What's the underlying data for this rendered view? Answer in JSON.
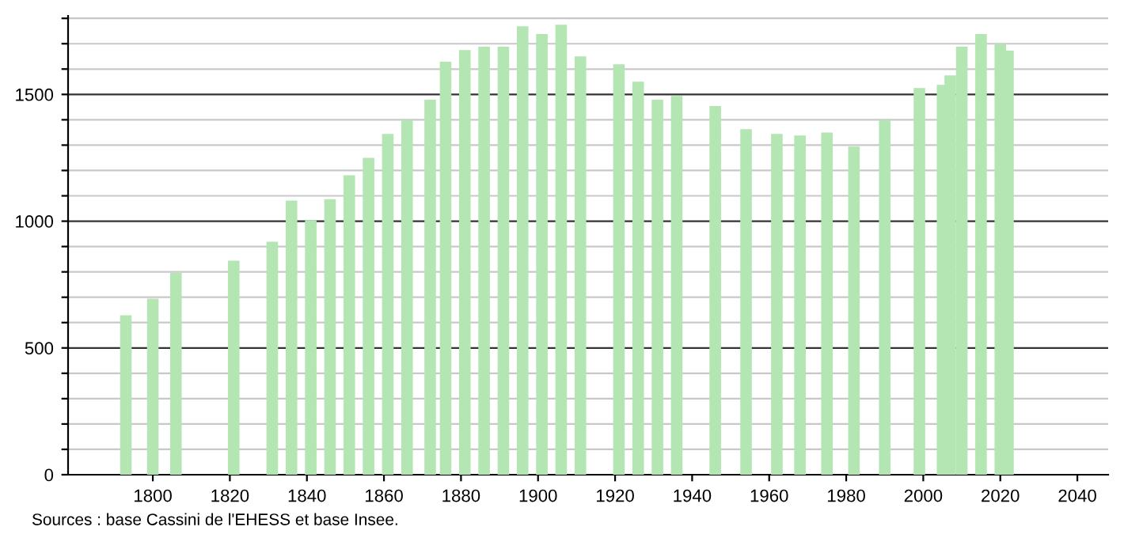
{
  "chart_data": {
    "type": "bar",
    "x": [
      1793,
      1800,
      1806,
      1821,
      1831,
      1836,
      1841,
      1846,
      1851,
      1856,
      1861,
      1866,
      1872,
      1876,
      1881,
      1886,
      1891,
      1896,
      1901,
      1906,
      1911,
      1921,
      1926,
      1931,
      1936,
      1946,
      1954,
      1962,
      1968,
      1975,
      1982,
      1990,
      1999,
      2005,
      2007,
      2010,
      2015,
      2020,
      2022
    ],
    "values": [
      629,
      694,
      796,
      844,
      919,
      1081,
      1004,
      1087,
      1181,
      1250,
      1344,
      1400,
      1479,
      1629,
      1675,
      1688,
      1688,
      1769,
      1738,
      1775,
      1650,
      1619,
      1550,
      1479,
      1494,
      1454,
      1363,
      1344,
      1338,
      1350,
      1294,
      1400,
      1525,
      1538,
      1575,
      1688,
      1738,
      1700,
      1673
    ],
    "color": "#b3e6b3",
    "xlim": [
      1778,
      2048
    ],
    "xticks": [
      1800,
      1820,
      1840,
      1860,
      1880,
      1900,
      1920,
      1940,
      1960,
      1980,
      2000,
      2020,
      2040
    ],
    "ylim": [
      0,
      1810
    ],
    "yticks": [
      0,
      {
        "value": 100,
        "label": null
      },
      {
        "value": 200,
        "label": null
      },
      {
        "value": 300,
        "label": null
      },
      {
        "value": 400,
        "label": null
      },
      500,
      {
        "value": 600,
        "label": null
      },
      {
        "value": 700,
        "label": null
      },
      {
        "value": 800,
        "label": null
      },
      {
        "value": 900,
        "label": null
      },
      1000,
      {
        "value": 1100,
        "label": null
      },
      {
        "value": 1200,
        "label": null
      },
      {
        "value": 1300,
        "label": null
      },
      {
        "value": 1400,
        "label": null
      },
      1500,
      {
        "value": 1600,
        "label": null
      },
      {
        "value": 1700,
        "label": null
      },
      {
        "value": 1800,
        "label": null
      }
    ],
    "grid": "y",
    "annotations": [
      "Sources : base Cassini de l'EHESS et base Insee."
    ]
  }
}
